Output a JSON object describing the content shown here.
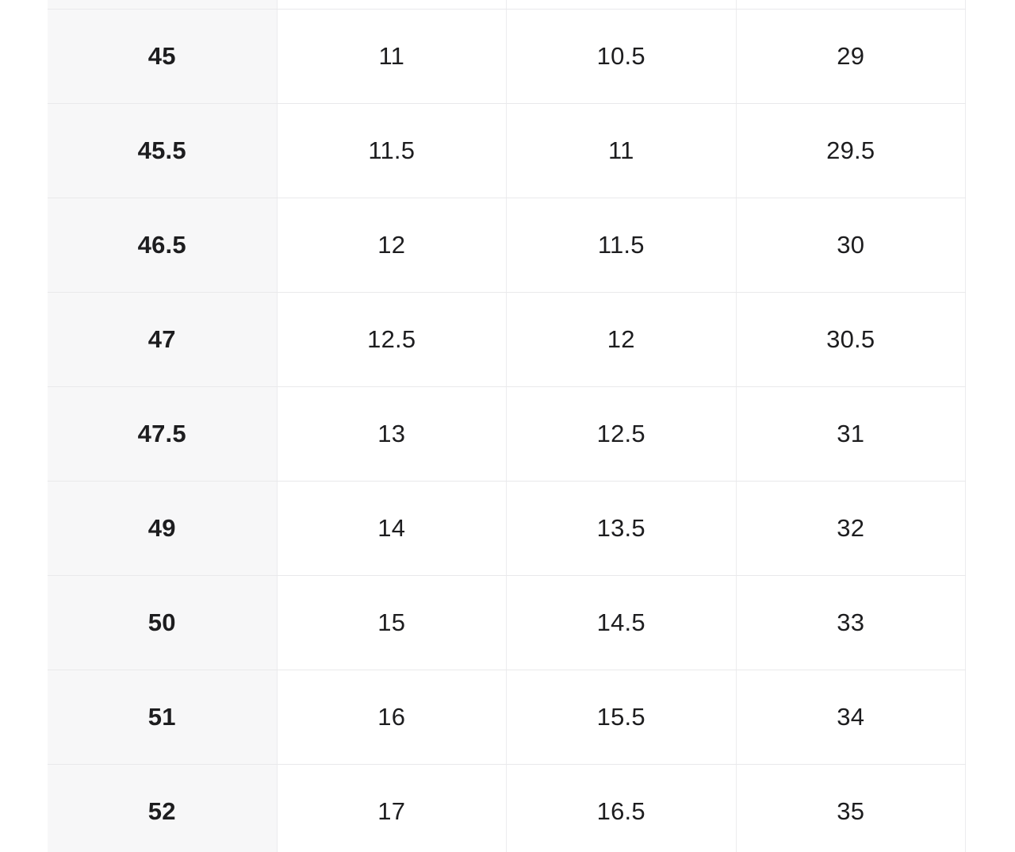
{
  "size_chart": {
    "partial_top_row": [
      "",
      "",
      "",
      ""
    ],
    "rows": [
      [
        "45",
        "11",
        "10.5",
        "29"
      ],
      [
        "45.5",
        "11.5",
        "11",
        "29.5"
      ],
      [
        "46.5",
        "12",
        "11.5",
        "30"
      ],
      [
        "47",
        "12.5",
        "12",
        "30.5"
      ],
      [
        "47.5",
        "13",
        "12.5",
        "31"
      ],
      [
        "49",
        "14",
        "13.5",
        "32"
      ],
      [
        "50",
        "15",
        "14.5",
        "33"
      ],
      [
        "51",
        "16",
        "15.5",
        "34"
      ],
      [
        "52",
        "17",
        "16.5",
        "35"
      ]
    ],
    "colors": {
      "first_column_bg": "#f7f7f8",
      "row_border": "#e9e9eb",
      "column_border": "#ececee",
      "text": "#1d1d1f",
      "page_bg": "#ffffff"
    }
  }
}
